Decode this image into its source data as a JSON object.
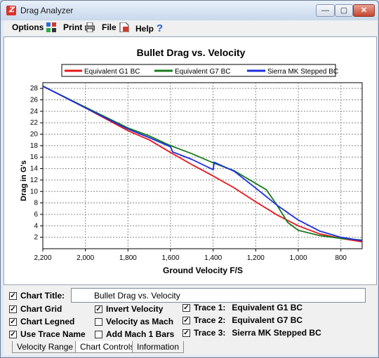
{
  "window": {
    "title": "Drag Analyzer"
  },
  "menu": [
    {
      "label": "Options",
      "icon": "options-icon"
    },
    {
      "label": "Print",
      "icon": "printer-icon"
    },
    {
      "label": "File",
      "icon": "file-icon"
    },
    {
      "label": "Help",
      "icon": "help-icon"
    }
  ],
  "chart_data": {
    "type": "line",
    "title": "Bullet Drag vs. Velocity",
    "xlabel": "Ground Velocity F/S",
    "ylabel": "Drag in G's",
    "x_reversed": true,
    "xlim": [
      2200,
      700
    ],
    "ylim": [
      0,
      29
    ],
    "grid": true,
    "legend_position": "top",
    "x_ticks": [
      2200,
      2000,
      1800,
      1600,
      1400,
      1200,
      1000,
      800
    ],
    "x_tick_labels": [
      "2,200",
      "2,000",
      "1,800",
      "1,600",
      "1,400",
      "1,200",
      "1,000",
      "800"
    ],
    "y_ticks": [
      2,
      4,
      6,
      8,
      10,
      12,
      14,
      16,
      18,
      20,
      22,
      24,
      26,
      28
    ],
    "series": [
      {
        "name": "Equivalent G1 BC",
        "color": "#e8151b",
        "points": [
          [
            2200,
            28.4
          ],
          [
            2000,
            24.6
          ],
          [
            1800,
            20.6
          ],
          [
            1700,
            19.0
          ],
          [
            1600,
            16.8
          ],
          [
            1500,
            14.7
          ],
          [
            1400,
            12.7
          ],
          [
            1300,
            10.6
          ],
          [
            1200,
            8.2
          ],
          [
            1100,
            5.9
          ],
          [
            1000,
            4.0
          ],
          [
            900,
            2.6
          ],
          [
            800,
            1.8
          ],
          [
            700,
            1.2
          ]
        ]
      },
      {
        "name": "Equivalent G7 BC",
        "color": "#1a7a1a",
        "points": [
          [
            2200,
            28.4
          ],
          [
            2000,
            24.7
          ],
          [
            1800,
            21.1
          ],
          [
            1700,
            19.7
          ],
          [
            1600,
            18.0
          ],
          [
            1500,
            16.6
          ],
          [
            1400,
            15.0
          ],
          [
            1300,
            13.6
          ],
          [
            1200,
            11.4
          ],
          [
            1150,
            10.3
          ],
          [
            1100,
            7.6
          ],
          [
            1050,
            4.6
          ],
          [
            1000,
            3.2
          ],
          [
            900,
            2.3
          ],
          [
            800,
            1.8
          ],
          [
            700,
            1.5
          ]
        ]
      },
      {
        "name": "Sierra MK Stepped BC",
        "color": "#1a2ee0",
        "points": [
          [
            2200,
            28.4
          ],
          [
            2000,
            24.6
          ],
          [
            1800,
            20.9
          ],
          [
            1700,
            19.4
          ],
          [
            1600,
            17.8
          ],
          [
            1590,
            16.9
          ],
          [
            1500,
            15.6
          ],
          [
            1400,
            13.8
          ],
          [
            1395,
            15.1
          ],
          [
            1300,
            13.5
          ],
          [
            1200,
            10.6
          ],
          [
            1100,
            7.6
          ],
          [
            1000,
            5.0
          ],
          [
            900,
            3.1
          ],
          [
            800,
            2.0
          ],
          [
            700,
            1.4
          ]
        ]
      }
    ]
  },
  "controls": {
    "chart_title_label": "Chart Title:",
    "chart_title_value": "Bullet Drag vs. Velocity",
    "chart_grid": "Chart Grid",
    "chart_legend": "Chart Legned",
    "use_trace_name": "Use Trace Name",
    "invert_velocity": "Invert Velocity",
    "velocity_as_mach": "Velocity as Mach",
    "add_mach_bars": "Add Mach 1 Bars",
    "traces": [
      {
        "label": "Trace 1:",
        "name": "Equivalent G1 BC"
      },
      {
        "label": "Trace 2:",
        "name": "Equivalent G7 BC"
      },
      {
        "label": "Trace 3:",
        "name": "Sierra MK Stepped BC"
      }
    ]
  },
  "tabs": [
    "Velocity Range",
    "Chart Controls",
    "Information"
  ],
  "active_tab": "Chart Controls"
}
